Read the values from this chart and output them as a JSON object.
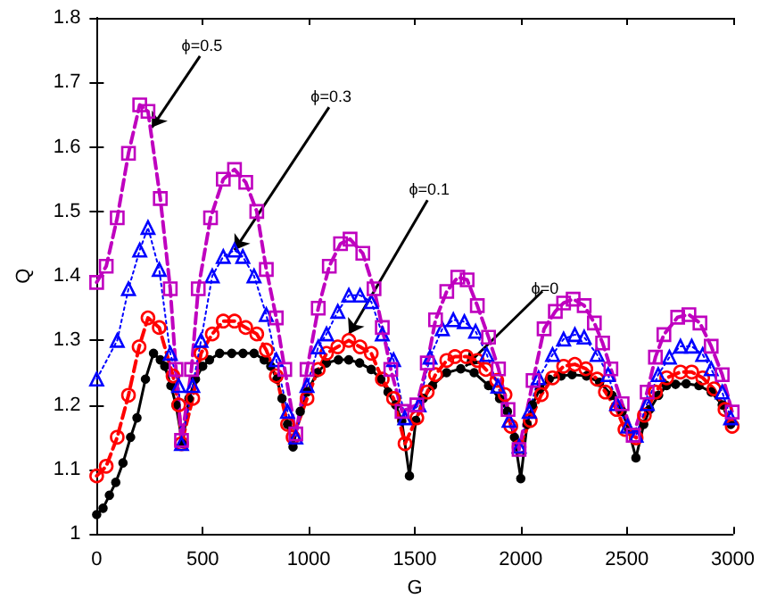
{
  "chart_data": {
    "type": "line",
    "xlabel": "G",
    "ylabel": "Q",
    "xlim": [
      0,
      3000
    ],
    "xticks": [
      0,
      500,
      1000,
      1500,
      2000,
      2500,
      3000
    ],
    "ylim": [
      1,
      1.8
    ],
    "yticks": [
      1,
      1.1,
      1.2,
      1.3,
      1.4,
      1.5,
      1.6,
      1.7,
      1.8
    ],
    "grid": false,
    "annotations": [
      {
        "text": "ϕ=0.5",
        "x": 260,
        "y": 1.63
      },
      {
        "text": "ϕ=0.3",
        "x": 650,
        "y": 1.44
      },
      {
        "text": "ϕ=0.1",
        "x": 1190,
        "y": 1.31
      },
      {
        "text": "ϕ=0",
        "x": 1740,
        "y": 1.26
      }
    ],
    "series": [
      {
        "color": "#000000",
        "marker": "circle",
        "line_style": "solid",
        "x": [
          0,
          30,
          60,
          90,
          124,
          160,
          190,
          230,
          268,
          300,
          321,
          350,
          374,
          405,
          435,
          466,
          500,
          532,
          580,
          637,
          690,
          742,
          790,
          821,
          850,
          874,
          900,
          926,
          960,
          992,
          1040,
          1084,
          1140,
          1189,
          1240,
          1295,
          1340,
          1374,
          1410,
          1439,
          1475,
          1505,
          1540,
          1584,
          1650,
          1717,
          1780,
          1848,
          1900,
          1937,
          1970,
          2000,
          2030,
          2055,
          2090,
          2134,
          2190,
          2242,
          2310,
          2372,
          2430,
          2478,
          2510,
          2543,
          2580,
          2608,
          2650,
          2687,
          2730,
          2780,
          2840,
          2898,
          2950,
          2990
        ],
        "values": [
          1.03,
          1.04,
          1.06,
          1.08,
          1.11,
          1.15,
          1.18,
          1.24,
          1.28,
          1.27,
          1.26,
          1.23,
          1.2,
          1.14,
          1.21,
          1.24,
          1.26,
          1.27,
          1.28,
          1.28,
          1.28,
          1.28,
          1.27,
          1.26,
          1.24,
          1.21,
          1.17,
          1.135,
          1.19,
          1.22,
          1.25,
          1.265,
          1.27,
          1.27,
          1.265,
          1.255,
          1.24,
          1.22,
          1.2,
          1.175,
          1.09,
          1.176,
          1.21,
          1.23,
          1.25,
          1.256,
          1.25,
          1.23,
          1.21,
          1.19,
          1.15,
          1.086,
          1.17,
          1.2,
          1.225,
          1.24,
          1.245,
          1.247,
          1.245,
          1.235,
          1.215,
          1.19,
          1.16,
          1.118,
          1.17,
          1.193,
          1.215,
          1.23,
          1.232,
          1.233,
          1.23,
          1.22,
          1.2,
          1.17
        ]
      },
      {
        "color": "#ff0000",
        "marker": "circle",
        "line_style": "dashed",
        "x": [
          0,
          45,
          97,
          150,
          200,
          242,
          295,
          360,
          387,
          400,
          453,
          492,
          545,
          597,
          650,
          703,
          755,
          800,
          847,
          900,
          926,
          992,
          1045,
          1084,
          1137,
          1189,
          1242,
          1295,
          1347,
          1400,
          1454,
          1510,
          1559,
          1598,
          1651,
          1690,
          1743,
          1795,
          1835,
          1887,
          1926,
          1953,
          1992,
          2045,
          2097,
          2150,
          2202,
          2255,
          2307,
          2360,
          2399,
          2452,
          2491,
          2544,
          2583,
          2635,
          2688,
          2753,
          2806,
          2858,
          2911,
          2963,
          2997
        ],
        "values": [
          1.09,
          1.105,
          1.15,
          1.215,
          1.29,
          1.335,
          1.32,
          1.245,
          1.2,
          1.14,
          1.21,
          1.28,
          1.31,
          1.33,
          1.33,
          1.32,
          1.31,
          1.285,
          1.245,
          1.17,
          1.15,
          1.21,
          1.255,
          1.28,
          1.29,
          1.3,
          1.29,
          1.28,
          1.24,
          1.21,
          1.14,
          1.18,
          1.22,
          1.247,
          1.269,
          1.275,
          1.275,
          1.269,
          1.255,
          1.238,
          1.216,
          1.167,
          1.135,
          1.176,
          1.216,
          1.242,
          1.26,
          1.263,
          1.256,
          1.24,
          1.22,
          1.193,
          1.162,
          1.149,
          1.184,
          1.22,
          1.242,
          1.251,
          1.251,
          1.242,
          1.225,
          1.193,
          1.167
        ]
      },
      {
        "color": "#0000ff",
        "marker": "triangle",
        "line_style": "dotted",
        "x": [
          0,
          97,
          150,
          203,
          242,
          295,
          347,
          387,
          400,
          453,
          492,
          545,
          597,
          650,
          689,
          742,
          800,
          847,
          900,
          939,
          992,
          1045,
          1084,
          1137,
          1189,
          1242,
          1295,
          1347,
          1400,
          1453,
          1520,
          1572,
          1630,
          1682,
          1734,
          1787,
          1840,
          1892,
          1945,
          1992,
          2040,
          2084,
          2150,
          2202,
          2255,
          2299,
          2360,
          2412,
          2452,
          2504,
          2544,
          2596,
          2648,
          2701,
          2753,
          2806,
          2858,
          2898,
          2950,
          2990
        ],
        "values": [
          1.24,
          1.3,
          1.38,
          1.44,
          1.475,
          1.41,
          1.28,
          1.23,
          1.14,
          1.23,
          1.3,
          1.4,
          1.43,
          1.44,
          1.43,
          1.4,
          1.34,
          1.27,
          1.19,
          1.15,
          1.23,
          1.29,
          1.31,
          1.345,
          1.37,
          1.37,
          1.36,
          1.31,
          1.27,
          1.18,
          1.2,
          1.274,
          1.318,
          1.332,
          1.329,
          1.314,
          1.278,
          1.229,
          1.176,
          1.136,
          1.19,
          1.242,
          1.278,
          1.302,
          1.309,
          1.305,
          1.278,
          1.247,
          1.202,
          1.167,
          1.153,
          1.202,
          1.247,
          1.274,
          1.291,
          1.291,
          1.278,
          1.256,
          1.22,
          1.18
        ]
      },
      {
        "color": "#bf00bf",
        "marker": "square",
        "line_style": "dashed",
        "x": [
          0,
          45,
          97,
          150,
          203,
          242,
          300,
          347,
          374,
          400,
          447,
          479,
          537,
          597,
          650,
          703,
          755,
          800,
          847,
          887,
          939,
          992,
          1045,
          1097,
          1150,
          1195,
          1255,
          1308,
          1347,
          1387,
          1440,
          1510,
          1559,
          1598,
          1651,
          1703,
          1747,
          1795,
          1848,
          1895,
          1940,
          1992,
          2058,
          2110,
          2163,
          2202,
          2247,
          2299,
          2347,
          2386,
          2425,
          2478,
          2530,
          2596,
          2635,
          2675,
          2740,
          2793,
          2845,
          2898,
          2950,
          2997
        ],
        "values": [
          1.39,
          1.415,
          1.49,
          1.59,
          1.665,
          1.655,
          1.52,
          1.38,
          1.255,
          1.145,
          1.255,
          1.38,
          1.49,
          1.55,
          1.565,
          1.545,
          1.5,
          1.41,
          1.335,
          1.255,
          1.155,
          1.255,
          1.35,
          1.415,
          1.45,
          1.457,
          1.435,
          1.38,
          1.32,
          1.255,
          1.19,
          1.2,
          1.265,
          1.332,
          1.376,
          1.398,
          1.394,
          1.354,
          1.305,
          1.256,
          1.193,
          1.131,
          1.238,
          1.318,
          1.345,
          1.358,
          1.364,
          1.354,
          1.327,
          1.296,
          1.256,
          1.202,
          1.153,
          1.22,
          1.274,
          1.309,
          1.336,
          1.34,
          1.327,
          1.291,
          1.247,
          1.189
        ]
      }
    ]
  }
}
